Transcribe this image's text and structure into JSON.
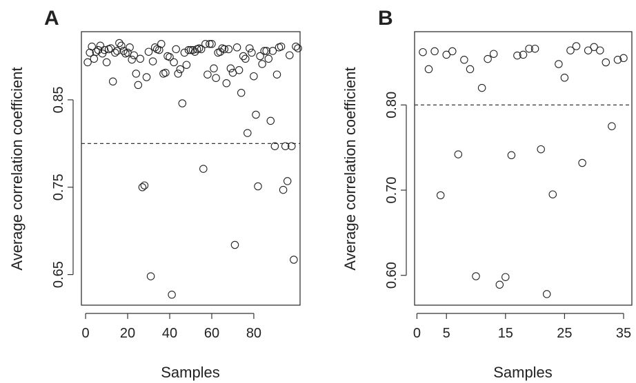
{
  "chart_data": [
    {
      "type": "scatter",
      "panel_label": "A",
      "xlabel": "Samples",
      "ylabel": "Average correlation coefficient",
      "xlim": [
        -2,
        102
      ],
      "ylim": [
        0.615,
        0.928
      ],
      "xticks": [
        0,
        20,
        40,
        60,
        80
      ],
      "yticks": [
        0.65,
        0.75,
        0.85
      ],
      "ytick_labels": [
        "0.65",
        "0.75",
        "0.85"
      ],
      "threshold": 0.8,
      "marker": "open-circle",
      "grid": false,
      "legend": "none",
      "points": [
        [
          1,
          0.893
        ],
        [
          2,
          0.904
        ],
        [
          3,
          0.911
        ],
        [
          4,
          0.897
        ],
        [
          5,
          0.905
        ],
        [
          6,
          0.907
        ],
        [
          7,
          0.912
        ],
        [
          8,
          0.903
        ],
        [
          9,
          0.907
        ],
        [
          10,
          0.893
        ],
        [
          11,
          0.908
        ],
        [
          12,
          0.909
        ],
        [
          13,
          0.871
        ],
        [
          14,
          0.904
        ],
        [
          15,
          0.906
        ],
        [
          16,
          0.915
        ],
        [
          17,
          0.912
        ],
        [
          18,
          0.906
        ],
        [
          19,
          0.903
        ],
        [
          20,
          0.904
        ],
        [
          21,
          0.91
        ],
        [
          22,
          0.896
        ],
        [
          23,
          0.901
        ],
        [
          24,
          0.88
        ],
        [
          25,
          0.867
        ],
        [
          26,
          0.897
        ],
        [
          27,
          0.75
        ],
        [
          28,
          0.752
        ],
        [
          29,
          0.876
        ],
        [
          30,
          0.905
        ],
        [
          31,
          0.648
        ],
        [
          32,
          0.894
        ],
        [
          33,
          0.91
        ],
        [
          34,
          0.908
        ],
        [
          35,
          0.907
        ],
        [
          36,
          0.914
        ],
        [
          37,
          0.88
        ],
        [
          38,
          0.881
        ],
        [
          39,
          0.9
        ],
        [
          40,
          0.899
        ],
        [
          41,
          0.627
        ],
        [
          42,
          0.893
        ],
        [
          43,
          0.908
        ],
        [
          44,
          0.88
        ],
        [
          45,
          0.885
        ],
        [
          46,
          0.846
        ],
        [
          47,
          0.904
        ],
        [
          48,
          0.89
        ],
        [
          49,
          0.907
        ],
        [
          50,
          0.907
        ],
        [
          51,
          0.907
        ],
        [
          52,
          0.905
        ],
        [
          53,
          0.908
        ],
        [
          54,
          0.909
        ],
        [
          55,
          0.908
        ],
        [
          56,
          0.771
        ],
        [
          57,
          0.914
        ],
        [
          58,
          0.879
        ],
        [
          59,
          0.914
        ],
        [
          60,
          0.914
        ],
        [
          61,
          0.886
        ],
        [
          62,
          0.875
        ],
        [
          63,
          0.904
        ],
        [
          64,
          0.905
        ],
        [
          65,
          0.909
        ],
        [
          66,
          0.908
        ],
        [
          67,
          0.869
        ],
        [
          68,
          0.908
        ],
        [
          69,
          0.886
        ],
        [
          70,
          0.881
        ],
        [
          71,
          0.684
        ],
        [
          72,
          0.91
        ],
        [
          73,
          0.884
        ],
        [
          74,
          0.858
        ],
        [
          75,
          0.9
        ],
        [
          76,
          0.897
        ],
        [
          77,
          0.812
        ],
        [
          78,
          0.909
        ],
        [
          79,
          0.904
        ],
        [
          80,
          0.877
        ],
        [
          81,
          0.833
        ],
        [
          82,
          0.751
        ],
        [
          83,
          0.9
        ],
        [
          84,
          0.891
        ],
        [
          85,
          0.906
        ],
        [
          86,
          0.906
        ],
        [
          87,
          0.897
        ],
        [
          88,
          0.826
        ],
        [
          89,
          0.906
        ],
        [
          90,
          0.797
        ],
        [
          91,
          0.879
        ],
        [
          92,
          0.91
        ],
        [
          93,
          0.911
        ],
        [
          94,
          0.747
        ],
        [
          95,
          0.797
        ],
        [
          96,
          0.757
        ],
        [
          97,
          0.901
        ],
        [
          98,
          0.797
        ],
        [
          99,
          0.667
        ],
        [
          100,
          0.911
        ],
        [
          101,
          0.909
        ]
      ]
    },
    {
      "type": "scatter",
      "panel_label": "B",
      "xlabel": "Samples",
      "ylabel": "Average correlation coefficient",
      "xlim": [
        -0.4,
        36.4
      ],
      "ylim": [
        0.565,
        0.886
      ],
      "xticks": [
        0,
        5,
        15,
        25,
        35
      ],
      "yticks": [
        0.6,
        0.7,
        0.8
      ],
      "ytick_labels": [
        "0.60",
        "0.70",
        "0.80"
      ],
      "threshold": 0.8,
      "marker": "open-circle",
      "grid": false,
      "legend": "none",
      "points": [
        [
          1,
          0.862
        ],
        [
          2,
          0.842
        ],
        [
          3,
          0.863
        ],
        [
          4,
          0.694
        ],
        [
          5,
          0.859
        ],
        [
          6,
          0.863
        ],
        [
          7,
          0.742
        ],
        [
          8,
          0.853
        ],
        [
          9,
          0.842
        ],
        [
          10,
          0.599
        ],
        [
          11,
          0.82
        ],
        [
          12,
          0.854
        ],
        [
          13,
          0.86
        ],
        [
          14,
          0.589
        ],
        [
          15,
          0.598
        ],
        [
          16,
          0.741
        ],
        [
          17,
          0.858
        ],
        [
          18,
          0.859
        ],
        [
          19,
          0.866
        ],
        [
          20,
          0.866
        ],
        [
          21,
          0.748
        ],
        [
          22,
          0.578
        ],
        [
          23,
          0.695
        ],
        [
          24,
          0.848
        ],
        [
          25,
          0.832
        ],
        [
          26,
          0.864
        ],
        [
          27,
          0.869
        ],
        [
          28,
          0.732
        ],
        [
          29,
          0.864
        ],
        [
          30,
          0.868
        ],
        [
          31,
          0.864
        ],
        [
          32,
          0.85
        ],
        [
          33,
          0.775
        ],
        [
          34,
          0.853
        ],
        [
          35,
          0.855
        ]
      ]
    }
  ]
}
